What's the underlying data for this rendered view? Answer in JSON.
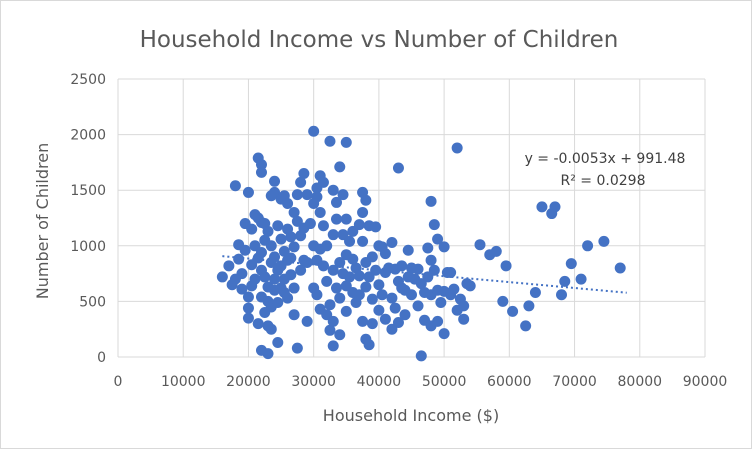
{
  "chart_data": {
    "type": "scatter",
    "title": "Household Income vs Number of Children",
    "xlabel": "Household Income ($)",
    "ylabel": "Number of Children",
    "xlim": [
      0,
      90000
    ],
    "ylim": [
      0,
      2500
    ],
    "x_ticks": [
      0,
      10000,
      20000,
      30000,
      40000,
      50000,
      60000,
      70000,
      80000,
      90000
    ],
    "y_ticks": [
      0,
      500,
      1000,
      1500,
      2000,
      2500
    ],
    "grid": true,
    "marker_color": "#4472c4",
    "trendline": {
      "slope": -0.0053,
      "intercept": 991.48,
      "x_range": [
        16000,
        78000
      ],
      "style": "dotted",
      "equation": "y = -0.0053x + 991.48",
      "r_squared": "R² = 0.0298"
    },
    "series": [
      {
        "points": [
          [
            16000,
            720
          ],
          [
            17000,
            820
          ],
          [
            17500,
            650
          ],
          [
            18000,
            1540
          ],
          [
            18000,
            700
          ],
          [
            18500,
            1010
          ],
          [
            18500,
            880
          ],
          [
            19000,
            610
          ],
          [
            19000,
            750
          ],
          [
            19500,
            1200
          ],
          [
            19500,
            960
          ],
          [
            20000,
            1480
          ],
          [
            20000,
            540
          ],
          [
            20000,
            440
          ],
          [
            20000,
            350
          ],
          [
            20500,
            1150
          ],
          [
            20500,
            830
          ],
          [
            20500,
            640
          ],
          [
            21000,
            1280
          ],
          [
            21000,
            1000
          ],
          [
            21000,
            700
          ],
          [
            21500,
            1790
          ],
          [
            21500,
            1250
          ],
          [
            21500,
            890
          ],
          [
            21500,
            300
          ],
          [
            22000,
            1730
          ],
          [
            22000,
            1660
          ],
          [
            22000,
            1210
          ],
          [
            22000,
            940
          ],
          [
            22000,
            780
          ],
          [
            22000,
            540
          ],
          [
            22000,
            60
          ],
          [
            22500,
            1200
          ],
          [
            22500,
            1050
          ],
          [
            22500,
            720
          ],
          [
            22500,
            400
          ],
          [
            23000,
            1130
          ],
          [
            23000,
            630
          ],
          [
            23000,
            500
          ],
          [
            23000,
            280
          ],
          [
            23000,
            30
          ],
          [
            23500,
            1450
          ],
          [
            23500,
            1000
          ],
          [
            23500,
            850
          ],
          [
            23500,
            450
          ],
          [
            23500,
            250
          ],
          [
            24000,
            1580
          ],
          [
            24000,
            1480
          ],
          [
            24000,
            900
          ],
          [
            24000,
            700
          ],
          [
            24000,
            600
          ],
          [
            24500,
            1180
          ],
          [
            24500,
            780
          ],
          [
            24500,
            490
          ],
          [
            24500,
            130
          ],
          [
            25000,
            1420
          ],
          [
            25000,
            1060
          ],
          [
            25000,
            820
          ],
          [
            25000,
            620
          ],
          [
            25500,
            1450
          ],
          [
            25500,
            950
          ],
          [
            25500,
            700
          ],
          [
            25500,
            580
          ],
          [
            26000,
            1380
          ],
          [
            26000,
            1150
          ],
          [
            26000,
            870
          ],
          [
            26000,
            530
          ],
          [
            26500,
            1080
          ],
          [
            26500,
            890
          ],
          [
            26500,
            740
          ],
          [
            27000,
            1300
          ],
          [
            27000,
            990
          ],
          [
            27000,
            620
          ],
          [
            27000,
            380
          ],
          [
            27500,
            1460
          ],
          [
            27500,
            1220
          ],
          [
            27500,
            80
          ],
          [
            28000,
            1570
          ],
          [
            28000,
            1090
          ],
          [
            28000,
            780
          ],
          [
            28500,
            1650
          ],
          [
            28500,
            1160
          ],
          [
            28500,
            870
          ],
          [
            29000,
            1460
          ],
          [
            29000,
            850
          ],
          [
            29000,
            320
          ],
          [
            29500,
            1200
          ],
          [
            30000,
            2030
          ],
          [
            30000,
            1380
          ],
          [
            30000,
            1000
          ],
          [
            30000,
            620
          ],
          [
            30500,
            1520
          ],
          [
            30500,
            1440
          ],
          [
            30500,
            870
          ],
          [
            30500,
            560
          ],
          [
            31000,
            1630
          ],
          [
            31000,
            1300
          ],
          [
            31000,
            970
          ],
          [
            31000,
            430
          ],
          [
            31500,
            1570
          ],
          [
            31500,
            1180
          ],
          [
            31500,
            820
          ],
          [
            32000,
            1000
          ],
          [
            32000,
            680
          ],
          [
            32000,
            380
          ],
          [
            32500,
            1940
          ],
          [
            32500,
            470
          ],
          [
            32500,
            240
          ],
          [
            33000,
            1500
          ],
          [
            33000,
            1100
          ],
          [
            33000,
            780
          ],
          [
            33000,
            320
          ],
          [
            33000,
            100
          ],
          [
            33500,
            1390
          ],
          [
            33500,
            1240
          ],
          [
            33500,
            620
          ],
          [
            34000,
            1710
          ],
          [
            34000,
            850
          ],
          [
            34000,
            530
          ],
          [
            34000,
            200
          ],
          [
            34500,
            1460
          ],
          [
            34500,
            1100
          ],
          [
            34500,
            750
          ],
          [
            35000,
            1930
          ],
          [
            35000,
            1240
          ],
          [
            35000,
            920
          ],
          [
            35000,
            640
          ],
          [
            35000,
            410
          ],
          [
            35500,
            1040
          ],
          [
            35500,
            720
          ],
          [
            36000,
            1130
          ],
          [
            36000,
            880
          ],
          [
            36000,
            580
          ],
          [
            36500,
            800
          ],
          [
            36500,
            490
          ],
          [
            37000,
            1190
          ],
          [
            37000,
            730
          ],
          [
            37000,
            560
          ],
          [
            37500,
            1480
          ],
          [
            37500,
            1300
          ],
          [
            37500,
            1040
          ],
          [
            37500,
            320
          ],
          [
            38000,
            1410
          ],
          [
            38000,
            850
          ],
          [
            38000,
            630
          ],
          [
            38000,
            160
          ],
          [
            38500,
            1180
          ],
          [
            38500,
            720
          ],
          [
            38500,
            110
          ],
          [
            39000,
            900
          ],
          [
            39000,
            520
          ],
          [
            39000,
            300
          ],
          [
            39500,
            1170
          ],
          [
            39500,
            780
          ],
          [
            40000,
            1000
          ],
          [
            40000,
            650
          ],
          [
            40000,
            420
          ],
          [
            40500,
            990
          ],
          [
            40500,
            560
          ],
          [
            41000,
            930
          ],
          [
            41000,
            760
          ],
          [
            41000,
            340
          ],
          [
            41500,
            800
          ],
          [
            42000,
            1030
          ],
          [
            42000,
            530
          ],
          [
            42000,
            250
          ],
          [
            42500,
            790
          ],
          [
            42500,
            440
          ],
          [
            43000,
            1700
          ],
          [
            43000,
            680
          ],
          [
            43000,
            310
          ],
          [
            43500,
            820
          ],
          [
            43500,
            620
          ],
          [
            44000,
            600
          ],
          [
            44000,
            380
          ],
          [
            44500,
            960
          ],
          [
            44500,
            720
          ],
          [
            45000,
            800
          ],
          [
            45000,
            560
          ],
          [
            45500,
            700
          ],
          [
            46000,
            790
          ],
          [
            46000,
            460
          ],
          [
            46500,
            660
          ],
          [
            46500,
            10
          ],
          [
            47000,
            580
          ],
          [
            47000,
            330
          ],
          [
            47500,
            980
          ],
          [
            47500,
            720
          ],
          [
            48000,
            1400
          ],
          [
            48000,
            870
          ],
          [
            48000,
            560
          ],
          [
            48000,
            280
          ],
          [
            48500,
            1190
          ],
          [
            48500,
            780
          ],
          [
            49000,
            1060
          ],
          [
            49000,
            600
          ],
          [
            49000,
            320
          ],
          [
            49500,
            490
          ],
          [
            50000,
            990
          ],
          [
            50000,
            590
          ],
          [
            50000,
            210
          ],
          [
            50500,
            760
          ],
          [
            51000,
            760
          ],
          [
            51000,
            560
          ],
          [
            51500,
            610
          ],
          [
            52000,
            1880
          ],
          [
            52000,
            420
          ],
          [
            52500,
            520
          ],
          [
            53000,
            460
          ],
          [
            53000,
            340
          ],
          [
            53500,
            660
          ],
          [
            54000,
            640
          ],
          [
            55500,
            1010
          ],
          [
            57000,
            920
          ],
          [
            58000,
            950
          ],
          [
            59000,
            500
          ],
          [
            59500,
            820
          ],
          [
            60500,
            410
          ],
          [
            62500,
            280
          ],
          [
            63000,
            460
          ],
          [
            64000,
            580
          ],
          [
            65000,
            1350
          ],
          [
            66500,
            1290
          ],
          [
            67000,
            1350
          ],
          [
            68000,
            560
          ],
          [
            68500,
            680
          ],
          [
            69500,
            840
          ],
          [
            71000,
            700
          ],
          [
            72000,
            1000
          ],
          [
            74500,
            1040
          ],
          [
            77000,
            800
          ]
        ]
      }
    ]
  }
}
